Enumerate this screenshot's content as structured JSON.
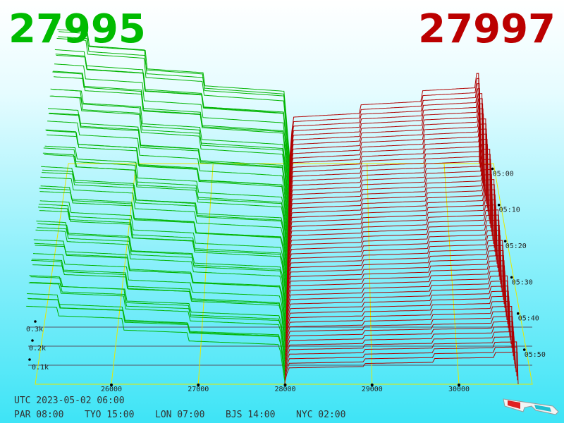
{
  "bid": 27995,
  "ask": 27997,
  "price_ticks": [
    26000,
    27000,
    28000,
    29000,
    30000
  ],
  "time_labels": [
    "05:00",
    "05:10",
    "05:20",
    "05:30",
    "05:40",
    "05:50"
  ],
  "depth_ticks": [
    {
      "value": 100,
      "label": "0.1k"
    },
    {
      "value": 200,
      "label": "0.2k"
    },
    {
      "value": 300,
      "label": "0.3k"
    }
  ],
  "footer": {
    "utc": "UTC 2023-05-02 06:00",
    "zones": [
      "PAR 08:00",
      "TYO 15:00",
      "LON 07:00",
      "BJS 14:00",
      "NYC 02:00"
    ]
  }
}
